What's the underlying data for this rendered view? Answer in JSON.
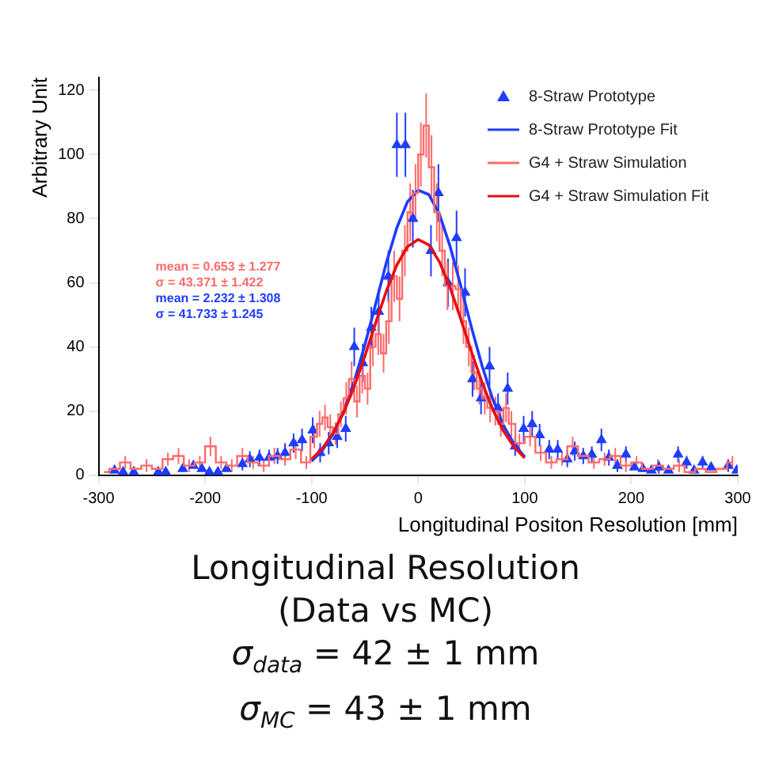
{
  "chart_data": {
    "type": "scatter",
    "xlabel": "Longitudinal Positon Resolution [mm]",
    "ylabel": "Arbitrary Unit",
    "xlim": [
      -300,
      300
    ],
    "xticks": [
      -300,
      -200,
      -100,
      0,
      100,
      200,
      300
    ],
    "ylim": [
      0,
      124
    ],
    "yticks": [
      0,
      20,
      40,
      60,
      80,
      100,
      120
    ],
    "legend": "top right",
    "grid": false,
    "series": [
      {
        "name": "8-Straw Prototype",
        "type": "scatter",
        "marker": "triangle",
        "color": "#1f3cff",
        "x": [
          -285,
          -277,
          -267,
          -244,
          -237,
          -221,
          -211,
          -203,
          -196,
          -188,
          -180,
          -165,
          -158,
          -149,
          -140,
          -132,
          -125,
          -117,
          -109,
          -99,
          -92,
          -84,
          -76,
          -68,
          -60,
          -52,
          -44,
          -37,
          -28,
          -20,
          -12,
          -5,
          12,
          19,
          28,
          36,
          44,
          51,
          59,
          67,
          75,
          84,
          91,
          99,
          107,
          114,
          123,
          131,
          140,
          147,
          155,
          163,
          172,
          179,
          187,
          195,
          203,
          211,
          219,
          226,
          235,
          244,
          252,
          259,
          267,
          275,
          291,
          299
        ],
        "values": [
          1.5,
          1,
          1,
          1,
          1,
          2,
          3,
          2,
          1,
          1,
          2,
          3.5,
          5,
          5.5,
          5.5,
          6,
          7,
          10,
          11,
          14,
          7,
          10,
          12,
          14.5,
          40,
          35,
          46,
          51,
          62,
          103,
          103,
          80,
          70,
          88,
          60,
          74,
          57,
          30,
          24,
          34,
          21,
          27,
          9,
          14.5,
          16,
          12.5,
          8,
          8,
          5,
          7.5,
          6,
          6.5,
          11,
          5.5,
          3,
          6.5,
          2.5,
          2,
          1.5,
          2.5,
          1.5,
          6.5,
          4,
          1.5,
          4,
          2.5,
          3,
          1.5
        ],
        "errors": [
          null,
          null,
          null,
          null,
          null,
          null,
          null,
          null,
          null,
          null,
          null,
          2,
          2.5,
          2.5,
          2.5,
          2.5,
          3,
          3,
          3.5,
          4,
          3,
          3.5,
          3.5,
          4,
          6,
          6,
          6.5,
          7,
          8,
          10,
          10,
          9,
          8,
          9,
          7.5,
          8.5,
          7.5,
          5.5,
          5,
          6,
          4.5,
          5,
          3,
          4,
          4,
          3.5,
          3,
          3,
          2.5,
          3,
          2.5,
          2.5,
          3.5,
          2.5,
          2,
          2.5,
          null,
          null,
          null,
          2,
          null,
          2.5,
          2,
          null,
          2,
          null,
          2,
          null
        ]
      },
      {
        "name": "8-Straw Prototype Fit",
        "type": "line",
        "marker": "none",
        "color": "#1f3cff",
        "x": [
          -100,
          -90,
          -80,
          -70,
          -60,
          -50,
          -40,
          -30,
          -20,
          -10,
          0,
          10,
          20,
          30,
          40,
          50,
          60,
          70,
          80,
          90,
          100
        ],
        "values": [
          4.4,
          7.7,
          12.8,
          19.9,
          29.3,
          40.7,
          53.3,
          66.1,
          77.2,
          85.3,
          88.9,
          87.5,
          81.3,
          71.3,
          59.0,
          46.1,
          34.1,
          23.7,
          15.6,
          9.7,
          5.7
        ]
      },
      {
        "name": "G4 + Straw Simulation",
        "type": "step",
        "marker": "none",
        "color": "#ff6a6a",
        "x": [
          -295,
          -285,
          -275,
          -265,
          -255,
          -245,
          -235,
          -225,
          -215,
          -205,
          -195,
          -185,
          -175,
          -165,
          -155,
          -145,
          -135,
          -125,
          -115,
          -105,
          -97.5,
          -92.5,
          -87.5,
          -82.5,
          -77.5,
          -72.5,
          -67.5,
          -62.5,
          -57.5,
          -52.5,
          -47.5,
          -42.5,
          -37.5,
          -32.5,
          -27.5,
          -22.5,
          -17.5,
          -12.5,
          -7.5,
          -2.5,
          2.5,
          7.5,
          12.5,
          17.5,
          22.5,
          27.5,
          32.5,
          37.5,
          42.5,
          47.5,
          52.5,
          57.5,
          62.5,
          67.5,
          72.5,
          77.5,
          82.5,
          87.5,
          95,
          105,
          115,
          125,
          135,
          145,
          155,
          165,
          175,
          185,
          195,
          205,
          215,
          225,
          235,
          245,
          255,
          265,
          275,
          285,
          295
        ],
        "values": [
          1,
          2,
          4,
          2,
          3,
          2,
          5,
          6,
          3,
          4,
          9,
          4,
          3,
          6,
          4,
          3,
          6,
          5,
          8,
          4,
          12,
          16,
          18,
          15,
          13,
          19,
          24,
          30,
          23,
          31,
          27,
          40,
          44,
          38,
          48,
          62,
          55,
          70,
          82,
          88,
          100,
          109,
          96,
          82,
          70,
          59,
          59,
          58,
          48,
          40,
          32,
          27,
          24,
          21,
          20,
          16,
          21,
          16,
          10,
          12,
          7,
          4,
          5,
          9,
          6,
          4,
          5,
          6,
          3,
          4,
          2,
          3,
          2,
          3,
          1,
          2,
          1,
          2,
          4
        ],
        "errors": [
          null,
          null,
          2,
          null,
          2,
          null,
          2,
          2.5,
          2,
          2,
          3,
          2,
          2,
          2.5,
          2,
          2,
          2.5,
          2,
          3,
          2,
          3.5,
          4,
          4,
          4,
          3.5,
          4,
          5,
          5.5,
          5,
          5.5,
          5,
          6,
          6.5,
          6,
          7,
          8,
          7,
          8,
          9,
          9,
          10,
          10,
          10,
          9,
          8,
          7.5,
          7.5,
          7.5,
          7,
          6,
          5.5,
          5,
          5,
          4.5,
          4.5,
          4,
          4.5,
          4,
          3,
          3,
          2.5,
          2,
          2,
          3,
          null,
          2,
          2,
          2.5,
          2,
          2,
          null,
          2,
          null,
          2,
          null,
          null,
          null,
          null,
          2
        ]
      },
      {
        "name": "G4 + Straw Simulation Fit",
        "type": "line",
        "marker": "none",
        "color": "#e80f0f",
        "x": [
          -100,
          -90,
          -80,
          -70,
          -60,
          -50,
          -40,
          -30,
          -20,
          -10,
          0,
          10,
          20,
          30,
          40,
          50,
          60,
          70,
          80,
          90,
          100
        ],
        "values": [
          5.0,
          8.3,
          13.1,
          19.5,
          27.7,
          37.2,
          47.4,
          57.3,
          65.6,
          71.3,
          73.5,
          71.8,
          66.5,
          58.5,
          48.7,
          38.5,
          28.9,
          20.5,
          13.8,
          8.8,
          5.4
        ]
      }
    ],
    "annotations": [
      "mean = 0.653 ± 1.277",
      "σ = 43.371 ± 1.422",
      "mean = 2.232 ± 1.308",
      "σ = 41.733 ± 1.245",
      "σ$_{data}$ = 42 ± 1 mm",
      "σ$_{MC}$ = 43 ± 1 mm"
    ],
    "title": "Longitudinal Resolution",
    "subtitle": "(Data vs MC)"
  }
}
